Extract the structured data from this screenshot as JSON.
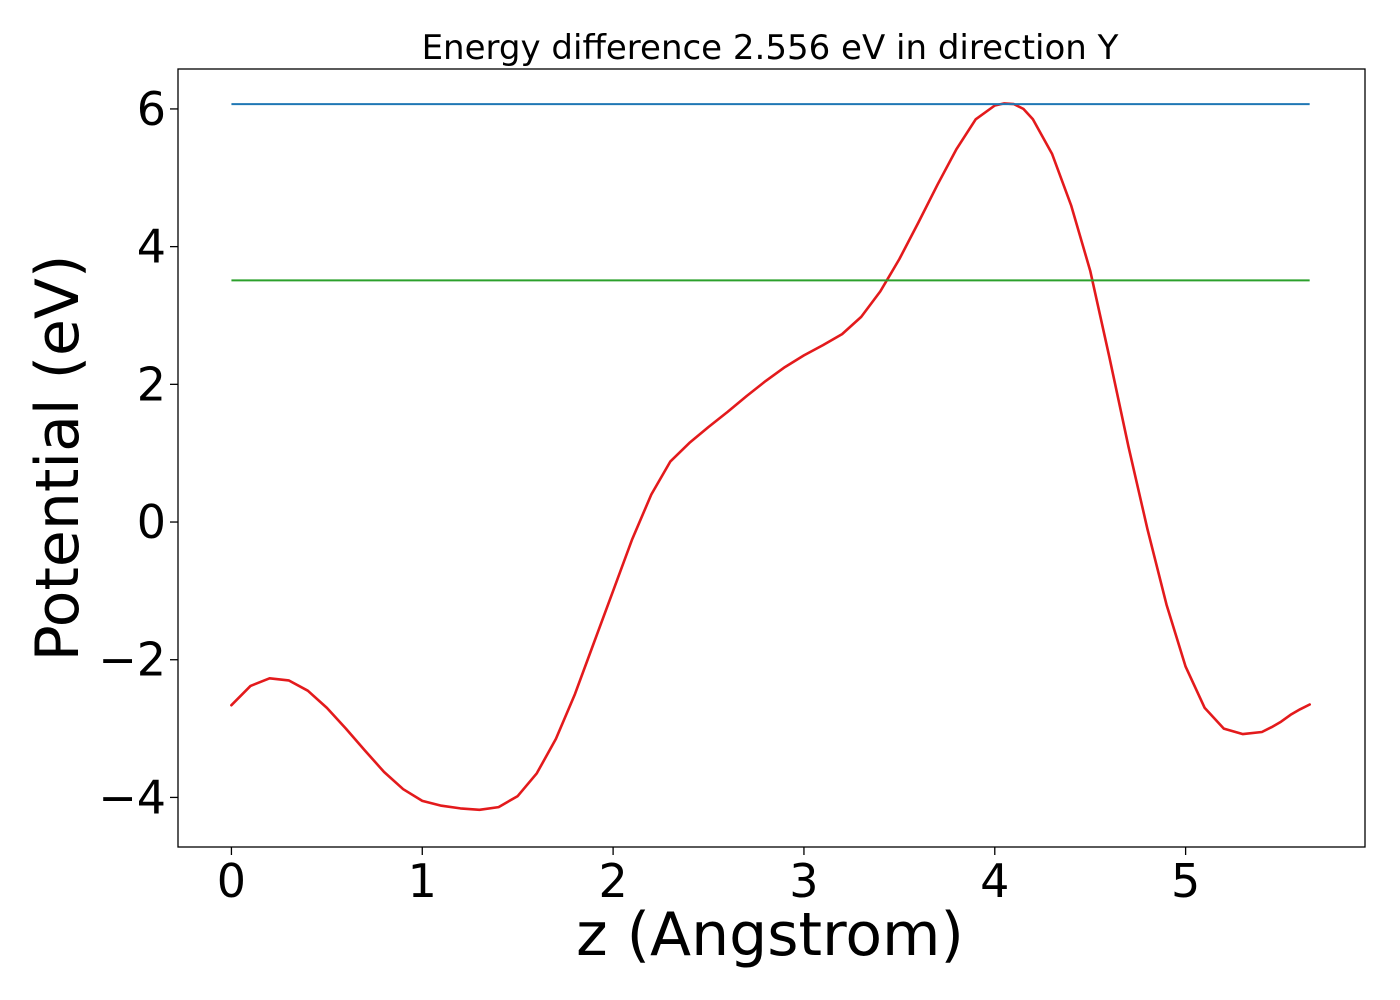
{
  "chart_data": {
    "type": "line",
    "title": "Energy difference 2.556 eV in direction Y",
    "xlabel": "z (Angstrom)",
    "ylabel": "Potential (eV)",
    "xlim": [
      -0.28,
      5.94
    ],
    "ylim": [
      -4.72,
      6.58
    ],
    "xticks": [
      0,
      1,
      2,
      3,
      4,
      5
    ],
    "xtick_labels": [
      "0",
      "1",
      "2",
      "3",
      "4",
      "5"
    ],
    "yticks": [
      -4,
      -2,
      0,
      2,
      4,
      6
    ],
    "ytick_labels": [
      "−4",
      "−2",
      "0",
      "2",
      "4",
      "6"
    ],
    "grid": false,
    "colors": {
      "potential": "#e31a1c",
      "max_line": "#1f77b4",
      "mean_line": "#2ca02c"
    },
    "series": [
      {
        "kind": "curve",
        "color_key": "potential",
        "x": [
          0,
          0.1,
          0.2,
          0.3,
          0.4,
          0.5,
          0.6,
          0.7,
          0.8,
          0.9,
          1.0,
          1.1,
          1.2,
          1.3,
          1.4,
          1.5,
          1.6,
          1.7,
          1.8,
          1.9,
          2.0,
          2.1,
          2.2,
          2.3,
          2.4,
          2.5,
          2.6,
          2.7,
          2.8,
          2.9,
          3.0,
          3.1,
          3.2,
          3.3,
          3.4,
          3.5,
          3.6,
          3.7,
          3.8,
          3.9,
          4.0,
          4.05,
          4.1,
          4.15,
          4.2,
          4.3,
          4.4,
          4.5,
          4.6,
          4.7,
          4.8,
          4.9,
          5.0,
          5.1,
          5.2,
          5.3,
          5.4,
          5.45,
          5.5,
          5.55,
          5.6,
          5.65
        ],
        "y": [
          -2.66,
          -2.38,
          -2.27,
          -2.3,
          -2.45,
          -2.7,
          -3.0,
          -3.32,
          -3.63,
          -3.88,
          -4.05,
          -4.12,
          -4.16,
          -4.18,
          -4.14,
          -3.98,
          -3.65,
          -3.15,
          -2.5,
          -1.75,
          -1.0,
          -0.25,
          0.4,
          0.88,
          1.15,
          1.38,
          1.6,
          1.83,
          2.05,
          2.25,
          2.42,
          2.57,
          2.73,
          2.98,
          3.35,
          3.82,
          4.35,
          4.9,
          5.42,
          5.85,
          6.05,
          6.08,
          6.07,
          6.0,
          5.85,
          5.35,
          4.6,
          3.65,
          2.4,
          1.1,
          -0.1,
          -1.2,
          -2.1,
          -2.7,
          -3.0,
          -3.08,
          -3.05,
          -2.98,
          -2.9,
          -2.8,
          -2.72,
          -2.65
        ]
      },
      {
        "kind": "hline",
        "color_key": "max_line",
        "y": 6.07,
        "x_from": 0,
        "x_to": 5.65
      },
      {
        "kind": "hline",
        "color_key": "mean_line",
        "y": 3.51,
        "x_from": 0,
        "x_to": 5.65
      }
    ]
  }
}
